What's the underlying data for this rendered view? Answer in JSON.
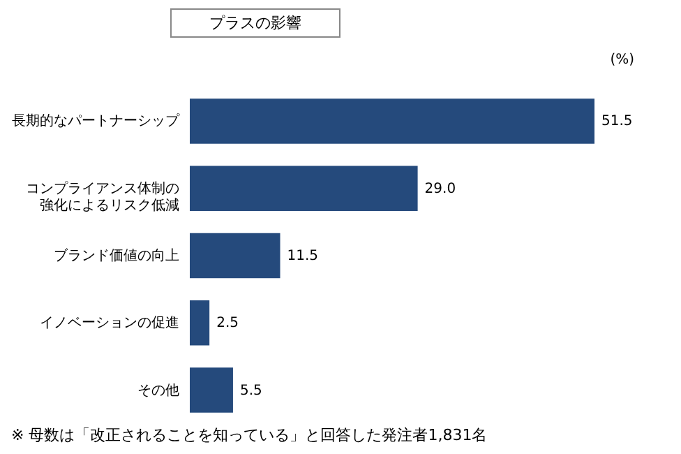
{
  "chart_data": {
    "type": "bar",
    "orientation": "horizontal",
    "title": "プラスの影響",
    "xlabel": "(%)",
    "categories": [
      "長期的なパートナーシップ",
      "コンプライアンス体制の強化によるリスク低減",
      "ブランド価値の向上",
      "イノベーションの促進",
      "その他"
    ],
    "values": [
      51.5,
      29.0,
      11.5,
      2.5,
      5.5
    ],
    "value_labels": [
      "51.5",
      "29.0",
      "11.5",
      "2.5",
      "5.5"
    ],
    "color": "#254a7c",
    "tick_labels": "y",
    "annotations": [
      "※ 母数は「改正されることを知っている」と回答した発注者1,831名"
    ]
  }
}
